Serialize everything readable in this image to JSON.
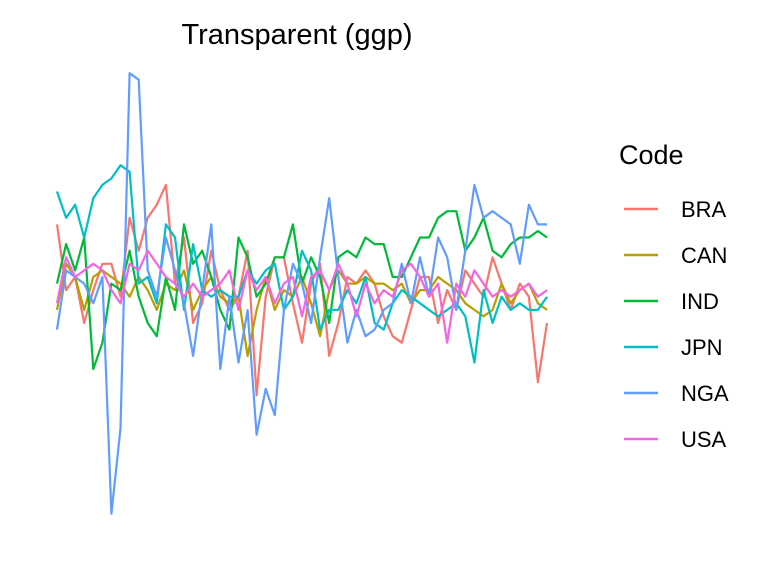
{
  "chart_data": {
    "type": "line",
    "title": "Transparent (ggp)",
    "xlabel": "",
    "ylabel": "",
    "grid": false,
    "axes_visible": false,
    "legend_position": "right",
    "legend_title": "Code",
    "x": [
      1,
      2,
      3,
      4,
      5,
      6,
      7,
      8,
      9,
      10,
      11,
      12,
      13,
      14,
      15,
      16,
      17,
      18,
      19,
      20,
      21,
      22,
      23,
      24,
      25,
      26,
      27,
      28,
      29,
      30,
      31,
      32,
      33,
      34,
      35,
      36,
      37,
      38,
      39,
      40,
      41,
      42,
      43,
      44,
      45,
      46,
      47,
      48,
      49,
      50,
      51,
      52,
      53,
      54,
      55
    ],
    "xlim": [
      1,
      55
    ],
    "ylim": [
      -3.8,
      3.5
    ],
    "series": [
      {
        "name": "BRA",
        "color": "#F8766D",
        "values": [
          1.0,
          0.0,
          0.2,
          -0.5,
          0.0,
          0.4,
          0.4,
          -0.1,
          1.1,
          0.6,
          1.1,
          1.3,
          1.6,
          0.1,
          0.8,
          -0.5,
          -0.2,
          0.6,
          0.0,
          -0.3,
          -0.1,
          0.6,
          -1.6,
          -0.1,
          0.5,
          0.5,
          -0.2,
          -0.8,
          0.1,
          0.4,
          -1.0,
          -0.5,
          0.2,
          0.1,
          0.3,
          0.1,
          -0.4,
          -0.7,
          -0.8,
          -0.3,
          0.2,
          0.2,
          -0.5,
          0.0,
          -0.3,
          0.3,
          0.1,
          -0.1,
          0.5,
          0.1,
          -0.3,
          0.1,
          -0.1,
          -1.4,
          -0.5
        ]
      },
      {
        "name": "CAN",
        "color": "#B79F00",
        "values": [
          -0.3,
          0.4,
          0.2,
          -0.3,
          0.2,
          0.3,
          0.2,
          0.1,
          -0.1,
          0.2,
          0.0,
          -0.3,
          0.1,
          0.0,
          0.3,
          -0.3,
          0.0,
          0.2,
          -0.1,
          -0.2,
          -0.1,
          -1.0,
          -0.3,
          0.2,
          -0.3,
          0.0,
          -0.1,
          0.2,
          -0.2,
          -0.7,
          0.0,
          0.3,
          0.1,
          0.1,
          0.2,
          0.1,
          0.1,
          0.0,
          0.1,
          -0.2,
          0.0,
          0.0,
          0.2,
          0.1,
          0.0,
          -0.2,
          -0.3,
          -0.4,
          -0.3,
          0.1,
          -0.2,
          0.0,
          0.1,
          -0.2,
          -0.3
        ]
      },
      {
        "name": "IND",
        "color": "#00BA38",
        "values": [
          0.1,
          0.7,
          0.3,
          0.8,
          -1.2,
          -0.8,
          0.1,
          0.0,
          0.6,
          -0.1,
          -0.5,
          -0.7,
          0.2,
          -0.3,
          1.0,
          0.4,
          0.6,
          0.2,
          -0.3,
          -0.6,
          0.8,
          0.5,
          -0.1,
          0.1,
          0.5,
          0.5,
          1.0,
          0.1,
          0.5,
          0.2,
          -0.5,
          0.5,
          0.6,
          0.5,
          0.8,
          0.7,
          0.7,
          0.2,
          0.2,
          0.5,
          0.8,
          0.8,
          1.1,
          1.2,
          1.2,
          0.6,
          0.8,
          1.1,
          0.6,
          0.5,
          0.7,
          0.8,
          0.8,
          0.9,
          0.8
        ]
      },
      {
        "name": "JPN",
        "color": "#00BFC4",
        "values": [
          1.5,
          1.1,
          1.3,
          0.8,
          1.4,
          1.6,
          1.7,
          1.9,
          1.8,
          0.1,
          0.2,
          -0.2,
          1.0,
          0.8,
          -0.3,
          0.7,
          0.0,
          -0.1,
          0.0,
          -0.1,
          -0.1,
          0.3,
          0.1,
          0.3,
          0.4,
          -0.3,
          -0.1,
          0.6,
          0.3,
          -0.6,
          -0.3,
          -0.3,
          0.0,
          -0.2,
          0.2,
          -0.5,
          -0.6,
          -0.2,
          0.0,
          -0.1,
          -0.2,
          -0.3,
          -0.4,
          -0.3,
          -0.2,
          -0.4,
          -1.1,
          0.0,
          -0.5,
          -0.1,
          -0.3,
          -0.2,
          -0.3,
          -0.3,
          -0.1
        ]
      },
      {
        "name": "NGA",
        "color": "#619CFF",
        "values": [
          -0.6,
          0.3,
          0.2,
          0.1,
          -0.2,
          0.2,
          -3.4,
          -2.1,
          3.3,
          3.2,
          0.3,
          -0.1,
          0.8,
          0.3,
          -0.2,
          -1.0,
          0.0,
          1.0,
          -1.2,
          -0.1,
          -1.1,
          -0.3,
          -2.2,
          -1.5,
          -1.9,
          -0.3,
          0.4,
          0.1,
          -0.5,
          0.5,
          1.4,
          0.2,
          -0.8,
          -0.3,
          -0.7,
          -0.6,
          -0.3,
          -0.2,
          0.4,
          -0.2,
          0.5,
          -0.1,
          0.8,
          0.5,
          -0.3,
          0.6,
          1.6,
          1.1,
          1.2,
          1.1,
          1.0,
          0.4,
          1.3,
          1.0,
          1.0
        ]
      },
      {
        "name": "USA",
        "color": "#F564E3",
        "values": [
          -0.2,
          0.5,
          0.2,
          0.3,
          0.4,
          0.3,
          0.0,
          -0.2,
          0.4,
          0.3,
          0.6,
          0.4,
          0.2,
          0.1,
          -0.1,
          0.1,
          -0.1,
          0.0,
          0.1,
          0.3,
          -0.3,
          0.3,
          0.0,
          0.2,
          -0.2,
          0.1,
          0.2,
          -0.4,
          0.2,
          0.3,
          0.0,
          0.4,
          0.1,
          -0.4,
          0.1,
          -0.2,
          0.0,
          -0.1,
          0.3,
          0.4,
          0.2,
          -0.1,
          0.1,
          -0.8,
          0.1,
          -0.1,
          0.3,
          0.1,
          -0.1,
          0.0,
          -0.1,
          0.0,
          0.1,
          -0.1,
          0.0
        ]
      }
    ]
  }
}
